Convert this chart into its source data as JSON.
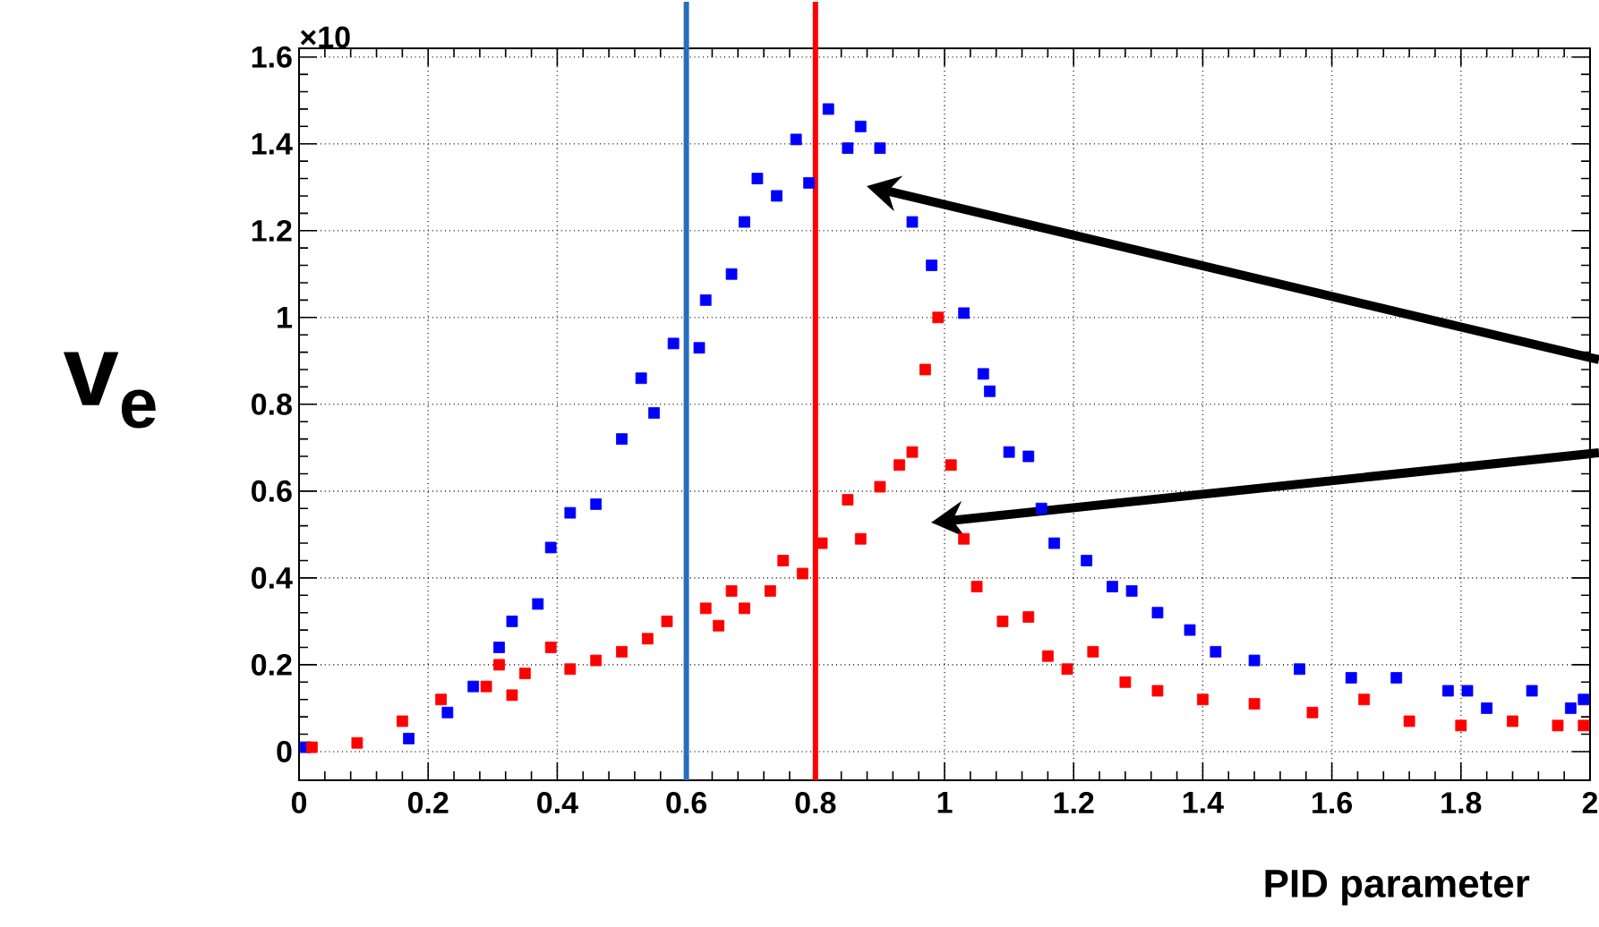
{
  "chart_data": {
    "type": "scatter",
    "xlabel": "PID parameter",
    "ylabel": "v$_{e}$",
    "annotations": [
      "×10"
    ],
    "xlim": [
      0,
      2
    ],
    "ylim": [
      -0.066,
      1.62
    ],
    "xticks": [
      0,
      0.2,
      0.4,
      0.6,
      0.8,
      1,
      1.2,
      1.4,
      1.6,
      1.8,
      2
    ],
    "yticks": [
      0,
      0.2,
      0.4,
      0.6,
      0.8,
      1,
      1.2,
      1.4,
      1.6
    ],
    "grid": true,
    "marker": "square",
    "ref_lines": [
      {
        "axis": "x",
        "value": 0.6,
        "color": "#2a6ebb"
      },
      {
        "axis": "x",
        "value": 0.8,
        "color": "#ff0000"
      }
    ],
    "series": [
      {
        "color": "#0000ff",
        "x": [
          0.01,
          0.17,
          0.23,
          0.27,
          0.31,
          0.33,
          0.37,
          0.39,
          0.42,
          0.46,
          0.5,
          0.53,
          0.55,
          0.58,
          0.62,
          0.63,
          0.67,
          0.69,
          0.71,
          0.74,
          0.77,
          0.79,
          0.82,
          0.85,
          0.87,
          0.9,
          0.95,
          0.98,
          1.03,
          1.06,
          1.07,
          1.1,
          1.13,
          1.15,
          1.17,
          1.22,
          1.26,
          1.29,
          1.33,
          1.38,
          1.42,
          1.48,
          1.55,
          1.63,
          1.7,
          1.78,
          1.81,
          1.84,
          1.91,
          1.97,
          1.99
        ],
        "values": [
          0.01,
          0.03,
          0.09,
          0.15,
          0.24,
          0.3,
          0.34,
          0.47,
          0.55,
          0.57,
          0.72,
          0.86,
          0.78,
          0.94,
          0.93,
          1.04,
          1.1,
          1.22,
          1.32,
          1.28,
          1.41,
          1.31,
          1.48,
          1.39,
          1.44,
          1.39,
          1.22,
          1.12,
          1.01,
          0.87,
          0.83,
          0.69,
          0.68,
          0.56,
          0.48,
          0.44,
          0.38,
          0.37,
          0.32,
          0.28,
          0.23,
          0.21,
          0.19,
          0.17,
          0.17,
          0.14,
          0.14,
          0.1,
          0.14,
          0.1,
          0.12
        ]
      },
      {
        "color": "#ff0000",
        "x": [
          0.02,
          0.09,
          0.16,
          0.22,
          0.29,
          0.31,
          0.33,
          0.35,
          0.39,
          0.42,
          0.46,
          0.5,
          0.54,
          0.57,
          0.63,
          0.65,
          0.67,
          0.69,
          0.73,
          0.75,
          0.78,
          0.81,
          0.85,
          0.87,
          0.9,
          0.93,
          0.95,
          0.97,
          0.99,
          1.01,
          1.03,
          1.05,
          1.09,
          1.13,
          1.16,
          1.19,
          1.23,
          1.28,
          1.33,
          1.4,
          1.48,
          1.57,
          1.65,
          1.72,
          1.8,
          1.88,
          1.95,
          1.99
        ],
        "values": [
          0.01,
          0.02,
          0.07,
          0.12,
          0.15,
          0.2,
          0.13,
          0.18,
          0.24,
          0.19,
          0.21,
          0.23,
          0.26,
          0.3,
          0.33,
          0.29,
          0.37,
          0.33,
          0.37,
          0.44,
          0.41,
          0.48,
          0.58,
          0.49,
          0.61,
          0.66,
          0.69,
          0.88,
          1.0,
          0.66,
          0.49,
          0.38,
          0.3,
          0.31,
          0.22,
          0.19,
          0.23,
          0.16,
          0.14,
          0.12,
          0.11,
          0.09,
          0.12,
          0.07,
          0.06,
          0.07,
          0.06,
          0.06
        ]
      }
    ]
  }
}
